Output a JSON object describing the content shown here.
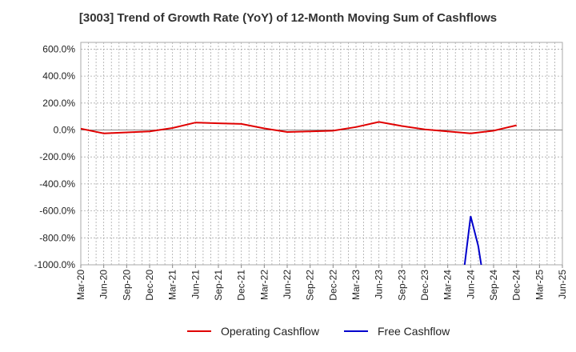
{
  "chart_data": {
    "type": "line",
    "title": "[3003]  Trend of Growth Rate (YoY) of 12-Month Moving Sum of Cashflows",
    "xlabel": "",
    "ylabel": "",
    "ylim": [
      -1000,
      650
    ],
    "y_ticks": [
      "600.0%",
      "400.0%",
      "200.0%",
      "0.0%",
      "-200.0%",
      "-400.0%",
      "-600.0%",
      "-800.0%",
      "-1000.0%"
    ],
    "y_tick_values": [
      600,
      400,
      200,
      0,
      -200,
      -400,
      -600,
      -800,
      -1000
    ],
    "categories": [
      "Mar-20",
      "Jun-20",
      "Sep-20",
      "Dec-20",
      "Mar-21",
      "Jun-21",
      "Sep-21",
      "Dec-21",
      "Mar-22",
      "Jun-22",
      "Sep-22",
      "Dec-22",
      "Mar-23",
      "Jun-23",
      "Sep-23",
      "Dec-23",
      "Mar-24",
      "Jun-24",
      "Sep-24",
      "Dec-24",
      "Mar-25",
      "Jun-25"
    ],
    "grid": true,
    "legend_position": "bottom",
    "series": [
      {
        "name": "Operating Cashflow",
        "color": "#e00000",
        "points": [
          {
            "x": "Mar-20",
            "y": 10
          },
          {
            "x": "Jun-20",
            "y": -25
          },
          {
            "x": "Sep-20",
            "y": -18
          },
          {
            "x": "Dec-20",
            "y": -10
          },
          {
            "x": "Mar-21",
            "y": 15
          },
          {
            "x": "Jun-21",
            "y": 55
          },
          {
            "x": "Sep-21",
            "y": 50
          },
          {
            "x": "Dec-21",
            "y": 45
          },
          {
            "x": "Mar-22",
            "y": 12
          },
          {
            "x": "Jun-22",
            "y": -15
          },
          {
            "x": "Sep-22",
            "y": -10
          },
          {
            "x": "Dec-22",
            "y": -5
          },
          {
            "x": "Mar-23",
            "y": 22
          },
          {
            "x": "Jun-23",
            "y": 60
          },
          {
            "x": "Sep-23",
            "y": 30
          },
          {
            "x": "Dec-23",
            "y": 5
          },
          {
            "x": "Mar-24",
            "y": -10
          },
          {
            "x": "Jun-24",
            "y": -25
          },
          {
            "x": "Sep-24",
            "y": -5
          },
          {
            "x": "Dec-24",
            "y": 35
          }
        ]
      },
      {
        "name": "Free Cashflow",
        "color": "#0000cc",
        "points": [
          {
            "x": "Mar-24",
            "y": -1010,
            "offset": 0.73
          },
          {
            "x": "Jun-24",
            "y": -640,
            "offset": 1.0
          },
          {
            "x": "Jun-24",
            "y": -860,
            "offset": 1.33
          },
          {
            "x": "Sep-24",
            "y": -1010,
            "offset": 1.47
          }
        ]
      }
    ]
  }
}
